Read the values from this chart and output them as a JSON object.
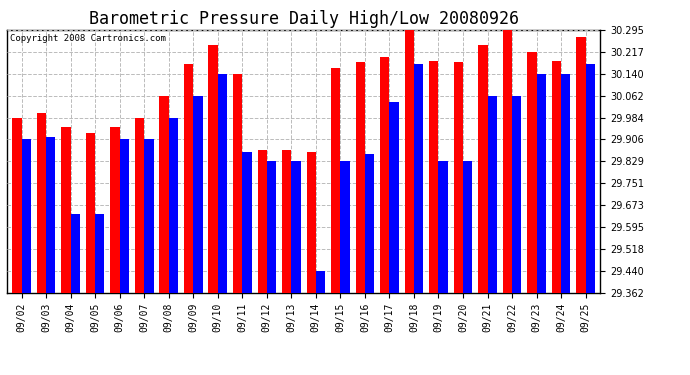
{
  "title": "Barometric Pressure Daily High/Low 20080926",
  "copyright": "Copyright 2008 Cartronics.com",
  "dates": [
    "09/02",
    "09/03",
    "09/04",
    "09/05",
    "09/06",
    "09/07",
    "09/08",
    "09/09",
    "09/10",
    "09/11",
    "09/12",
    "09/13",
    "09/14",
    "09/15",
    "09/16",
    "09/17",
    "09/18",
    "09/19",
    "09/20",
    "09/21",
    "09/22",
    "09/23",
    "09/24",
    "09/25"
  ],
  "high_values": [
    29.984,
    30.0,
    29.95,
    29.928,
    29.95,
    29.984,
    30.062,
    30.175,
    30.24,
    30.14,
    29.87,
    29.87,
    29.862,
    30.16,
    30.18,
    30.2,
    30.295,
    30.185,
    30.18,
    30.24,
    30.295,
    30.217,
    30.185,
    30.27
  ],
  "low_values": [
    29.906,
    29.913,
    29.64,
    29.64,
    29.906,
    29.906,
    29.984,
    30.062,
    30.14,
    29.862,
    29.829,
    29.829,
    29.44,
    29.829,
    29.856,
    30.04,
    30.175,
    29.829,
    29.829,
    30.062,
    30.062,
    30.14,
    30.14,
    30.175
  ],
  "high_color": "#FF0000",
  "low_color": "#0000FF",
  "background_color": "#FFFFFF",
  "grid_color": "#BBBBBB",
  "ylim_min": 29.362,
  "ylim_max": 30.295,
  "yticks": [
    29.362,
    29.44,
    29.518,
    29.595,
    29.673,
    29.751,
    29.829,
    29.906,
    29.984,
    30.062,
    30.14,
    30.217,
    30.295
  ],
  "title_fontsize": 12,
  "tick_fontsize": 7,
  "bar_width": 0.38
}
